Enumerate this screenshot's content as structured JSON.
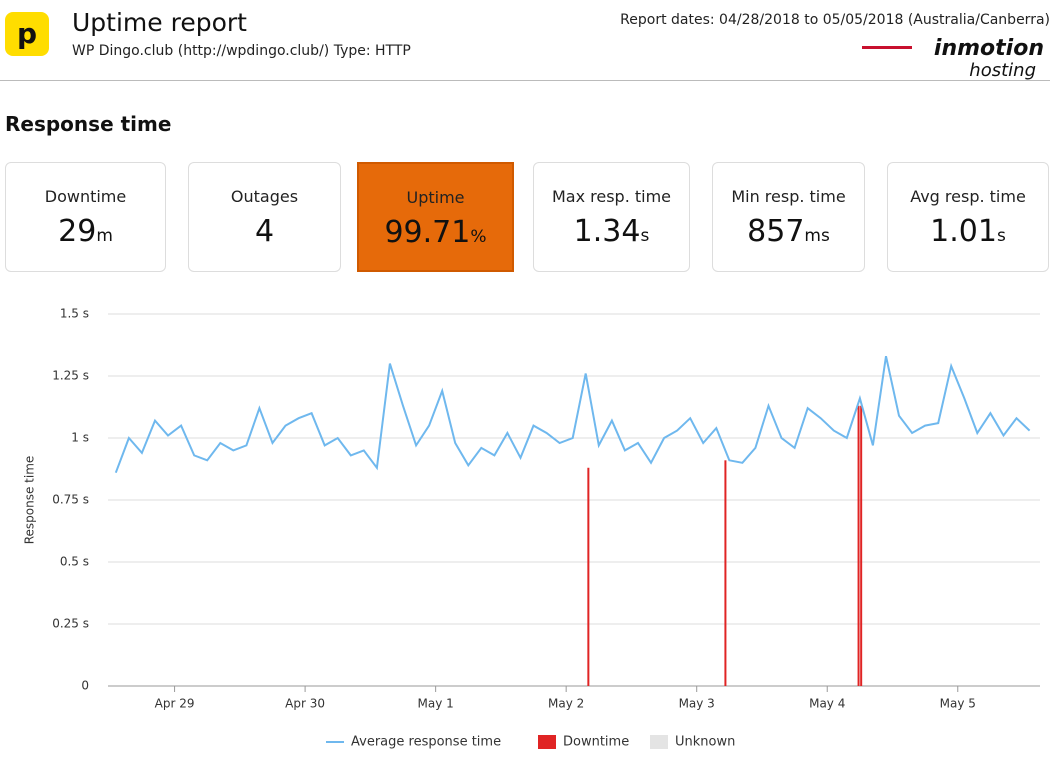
{
  "header": {
    "logo": "p",
    "title": "Uptime report",
    "subtitle": "WP Dingo.club (http://wpdingo.club/) Type: HTTP",
    "report_dates": "Report dates: 04/28/2018 to 05/05/2018 (Australia/Canberra)",
    "brand": "inmotion",
    "brand_sub": "hosting"
  },
  "section_title": "Response time",
  "cards": [
    {
      "label": "Downtime",
      "value": "29",
      "unit": "m"
    },
    {
      "label": "Outages",
      "value": "4",
      "unit": ""
    },
    {
      "label": "Uptime",
      "value": "99.71",
      "unit": "%"
    },
    {
      "label": "Max resp. time",
      "value": "1.34",
      "unit": "s"
    },
    {
      "label": "Min resp. time",
      "value": "857",
      "unit": "ms"
    },
    {
      "label": "Avg resp. time",
      "value": "1.01",
      "unit": "s"
    }
  ],
  "chart_data": {
    "type": "line",
    "y_label": "Response time",
    "grid": true,
    "ylim": [
      0,
      1.5
    ],
    "yticks": [
      0,
      {
        "value": 0.25,
        "label": "0.25 s"
      },
      {
        "value": 0.5,
        "label": "0.5 s"
      },
      {
        "value": 0.75,
        "label": "0.75 s"
      },
      {
        "value": 1,
        "label": "1 s"
      },
      {
        "value": 1.25,
        "label": "1.25 s"
      },
      {
        "value": 1.5,
        "label": "1.5 s"
      }
    ],
    "xlim": [
      -0.51,
      6.63
    ],
    "xticks": [
      {
        "value": 0,
        "label": "Apr 29"
      },
      {
        "value": 1,
        "label": "Apr 30"
      },
      {
        "value": 2,
        "label": "May 1"
      },
      {
        "value": 3,
        "label": "May 2"
      },
      {
        "value": 4,
        "label": "May 3"
      },
      {
        "value": 5,
        "label": "May 4"
      },
      {
        "value": 6,
        "label": "May 5"
      }
    ],
    "series": [
      {
        "name": "Average response time",
        "color": "#6fb8ee",
        "x": [
          -0.45,
          -0.35,
          -0.25,
          -0.15,
          -0.05,
          0.05,
          0.15,
          0.25,
          0.35,
          0.45,
          0.55,
          0.65,
          0.75,
          0.85,
          0.95,
          1.05,
          1.15,
          1.25,
          1.35,
          1.45,
          1.55,
          1.65,
          1.75,
          1.85,
          1.95,
          2.05,
          2.15,
          2.25,
          2.35,
          2.45,
          2.55,
          2.65,
          2.75,
          2.85,
          2.95,
          3.05,
          3.15,
          3.25,
          3.35,
          3.45,
          3.55,
          3.65,
          3.75,
          3.85,
          3.95,
          4.05,
          4.15,
          4.25,
          4.35,
          4.45,
          4.55,
          4.65,
          4.75,
          4.85,
          4.95,
          5.05,
          5.15,
          5.25,
          5.35,
          5.45,
          5.55,
          5.65,
          5.75,
          5.85,
          5.95,
          6.05,
          6.15,
          6.25,
          6.35,
          6.45,
          6.55
        ],
        "values": [
          0.86,
          1.0,
          0.94,
          1.07,
          1.01,
          1.05,
          0.93,
          0.91,
          0.98,
          0.95,
          0.97,
          1.12,
          0.98,
          1.05,
          1.08,
          1.1,
          0.97,
          1.0,
          0.93,
          0.95,
          0.88,
          1.3,
          1.13,
          0.97,
          1.05,
          1.19,
          0.98,
          0.89,
          0.96,
          0.93,
          1.02,
          0.92,
          1.05,
          1.02,
          0.98,
          1.0,
          1.26,
          0.97,
          1.07,
          0.95,
          0.98,
          0.9,
          1.0,
          1.03,
          1.08,
          0.98,
          1.04,
          0.91,
          0.9,
          0.96,
          1.13,
          1.0,
          0.96,
          1.12,
          1.08,
          1.03,
          1.0,
          1.16,
          0.97,
          1.33,
          1.09,
          1.02,
          1.05,
          1.06,
          1.29,
          1.16,
          1.02,
          1.1,
          1.01,
          1.08,
          1.03
        ]
      },
      {
        "name": "Downtime",
        "color": "#e02424",
        "x": [
          3.17,
          4.22,
          5.24,
          5.26
        ],
        "values": [
          0.88,
          0.91,
          1.13,
          1.13
        ]
      },
      {
        "name": "Unknown",
        "color": "#e4e4e4",
        "x": [],
        "values": []
      }
    ]
  }
}
